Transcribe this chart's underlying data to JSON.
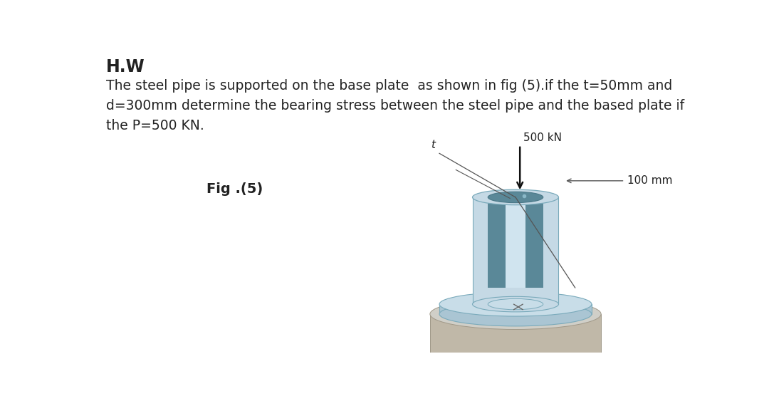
{
  "title": "H.W",
  "line1": "The steel pipe is supported on the base plate  as shown in fig (5).if the t=50mm and",
  "line2": "d=300mm determine the bearing stress between the steel pipe and the based plate if",
  "line3": "the P=500 KN.",
  "fig_label": "Fig .(5)",
  "force_label": "500 kN",
  "dim_label": "100 mm",
  "bg_color": "#ffffff",
  "text_color": "#222222",
  "pipe_outer_color": "#c5d9e5",
  "pipe_inner_color": "#7aaabb",
  "pipe_hole_color": "#5a8898",
  "pipe_shade_color": "#b0ccda",
  "plate_top_color": "#c8dde8",
  "plate_side_color": "#aac5d3",
  "plate_edge_color": "#7aaabb",
  "concrete_top_color": "#d0cfc8",
  "concrete_side_color": "#c0b8a8",
  "concrete_edge_color": "#a09888",
  "line_color": "#555555",
  "arrow_color": "#111111"
}
